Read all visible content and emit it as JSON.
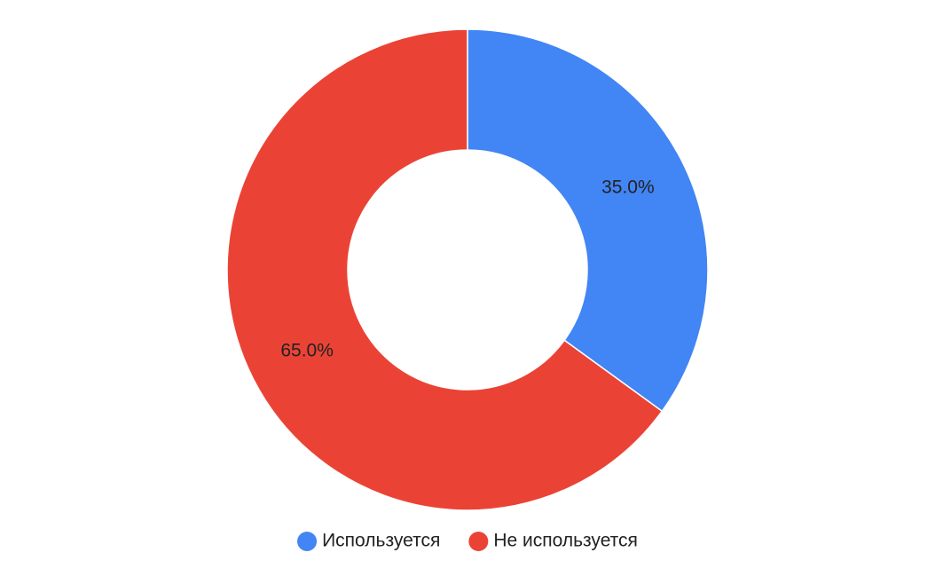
{
  "chart_data": {
    "type": "pie",
    "categories": [
      "Используется",
      "Не используется"
    ],
    "values": [
      35,
      65
    ],
    "value_labels": [
      "35.0%",
      "65.0%"
    ],
    "colors": [
      "#4285f4",
      "#ea4335"
    ],
    "legend": "bottom"
  }
}
